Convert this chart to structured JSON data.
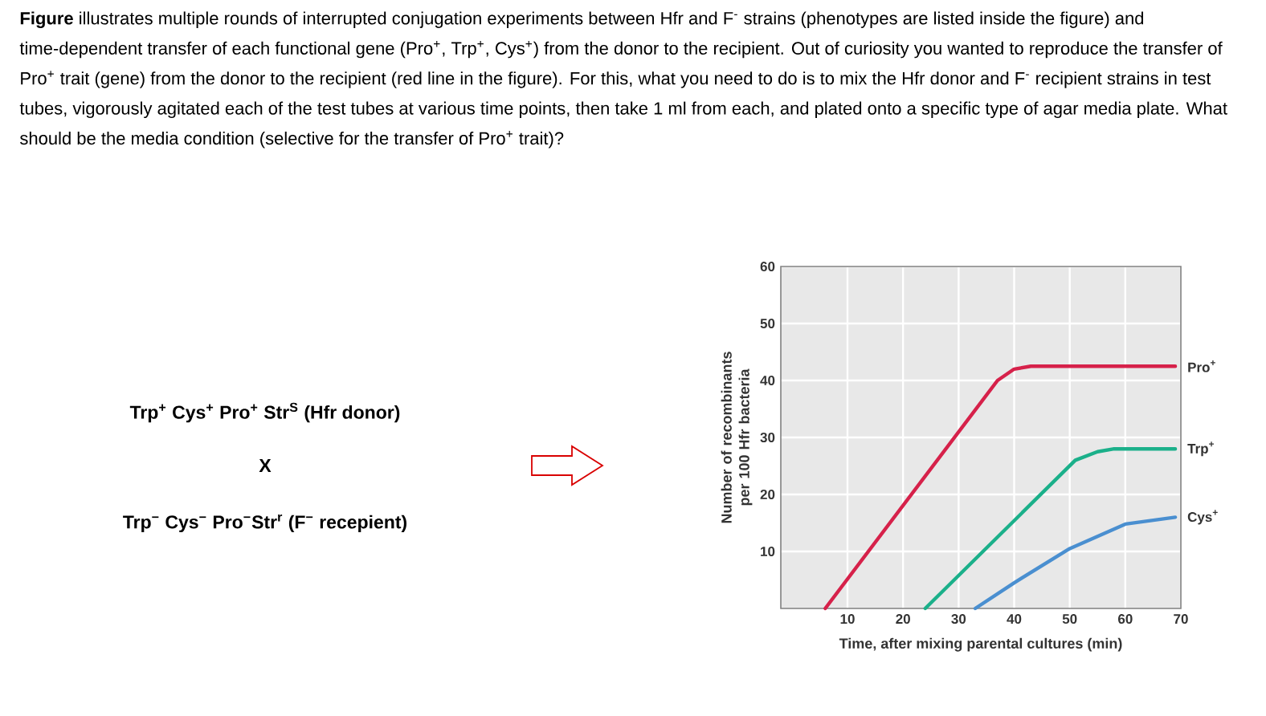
{
  "chart_data": {
    "type": "line",
    "xlabel": "Time, after mixing parental cultures (min)",
    "ylabel": "Number of recombinants per 100 Hfr bacteria",
    "xlim": [
      -2,
      70
    ],
    "xticks": [
      10,
      20,
      30,
      40,
      50,
      60,
      70
    ],
    "ylim": [
      0,
      60
    ],
    "yticks": [
      10,
      20,
      30,
      40,
      50,
      60
    ],
    "grid": true,
    "legend": false,
    "series": [
      {
        "name": "Pro$^{+}$",
        "color": "#d6214a",
        "x": [
          6,
          37,
          40,
          43,
          69
        ],
        "values": [
          0,
          40,
          42,
          42.5,
          42.5
        ]
      },
      {
        "name": "Trp$^{+}$",
        "color": "#1bb08a",
        "x": [
          24,
          51,
          55,
          58,
          69
        ],
        "values": [
          0,
          26,
          27.5,
          28,
          28
        ]
      },
      {
        "name": "Cys$^{+}$",
        "color": "#4a8fd0",
        "x": [
          33,
          40,
          50,
          60,
          69
        ],
        "values": [
          0,
          4.5,
          10.5,
          14.8,
          16
        ]
      }
    ],
    "annotations": [
      "**Figure** illustrates multiple rounds of interrupted conjugation experiments between Hfr and F$^{-}$ strains (phenotypes are listed inside the figure) and time-dependent transfer of each functional gene (Pro$^{+}$, Trp$^{+}$, Cys$^{+}$) from the donor to the recipient. Out of curiosity you wanted to reproduce the transfer of Pro$^{+}$ trait (gene) from the donor to the recipient (red line in the figure). For this, what you need to do is to mix the Hfr donor and F$^{-}$ recipient strains in test tubes, vigorously agitated each of the test tubes at various time points, then take 1 ml from each, and plated onto a specific type of agar media plate. What should be the media condition (selective for the transfer of Pro$^{+}$ trait)?",
      "Trp$^{+}$ Cys$^{+}$ Pro$^{+}$ Str$^{S}$ (Hfr donor)",
      "X",
      "Trp$^{−}$ Cys$^{−}$ Pro$^{−}$Str$^{r}$ (F$^{−}$ recepient)"
    ]
  }
}
